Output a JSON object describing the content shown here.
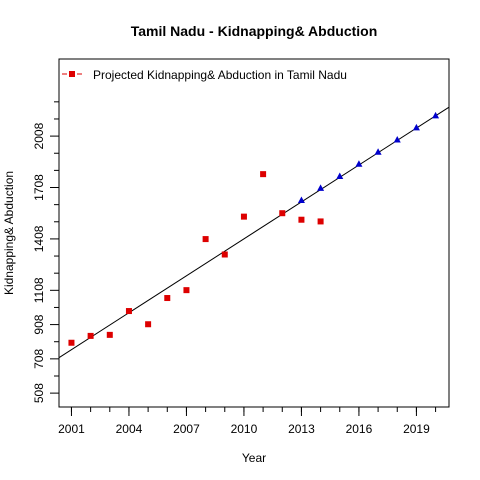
{
  "chart_data": {
    "type": "scatter",
    "title": "Tamil Nadu  -  Kidnapping& Abduction",
    "xlabel": "Year",
    "ylabel": "Kidnapping& Abduction",
    "xlim": [
      2000.35,
      2020.7
    ],
    "ylim": [
      427,
      2458
    ],
    "x_ticks": [
      2001,
      2004,
      2007,
      2010,
      2013,
      2016,
      2019
    ],
    "y_ticks": [
      508,
      708,
      908,
      1108,
      1408,
      1708,
      2008
    ],
    "y_minor_ticks": [
      608,
      808,
      1008,
      1208,
      1308,
      1508,
      1608,
      1808,
      1908,
      2108,
      2208
    ],
    "grid": false,
    "legend": {
      "position": "top-left",
      "entries": [
        {
          "label": "Projected  Kidnapping& Abduction  in  Tamil Nadu",
          "color": "#dd0000",
          "marker": "square"
        }
      ]
    },
    "series": [
      {
        "name": "Projected  Kidnapping& Abduction  in  Tamil Nadu",
        "marker": "square",
        "color": "#dd0000",
        "x": [
          2001,
          2002,
          2003,
          2004,
          2005,
          2006,
          2007,
          2008,
          2009,
          2010,
          2011,
          2012,
          2013,
          2014
        ],
        "y": [
          802,
          842,
          848,
          987,
          910,
          1063,
          1109,
          1407,
          1317,
          1538,
          1786,
          1558,
          1520,
          1510
        ]
      },
      {
        "marker": "triangle",
        "color": "#0000cc",
        "x": [
          2013,
          2014,
          2015,
          2016,
          2017,
          2018,
          2019,
          2020
        ],
        "y": [
          1635,
          1706,
          1775,
          1847,
          1917,
          1988,
          2059,
          2129
        ]
      }
    ],
    "trend_line": {
      "x": [
        2000.35,
        2020.7
      ],
      "y": [
        715,
        2177
      ]
    }
  }
}
